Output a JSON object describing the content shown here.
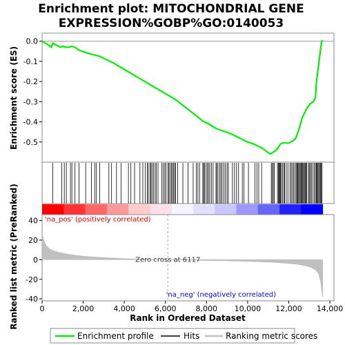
{
  "chart_data": [
    {
      "type": "line",
      "title_line1": "Enrichment plot: MITOCHONDRIAL GENE",
      "title_line2": "EXPRESSION%GOBP%GO:0140053",
      "ylabel": "Enrichment score (ES)",
      "ylim": [
        -0.6,
        0.04
      ],
      "yticks": [
        "0.0",
        "-0.1",
        "-0.2",
        "-0.3",
        "-0.4",
        "-0.5"
      ],
      "ytick_values": [
        0.0,
        -0.1,
        -0.2,
        -0.3,
        -0.4,
        -0.5
      ],
      "xlim": [
        0,
        14200
      ],
      "series": [
        {
          "name": "Enrichment profile",
          "color": "#00ee00",
          "x": [
            0,
            250,
            450,
            520,
            700,
            900,
            1000,
            1150,
            1300,
            1450,
            1600,
            1800,
            2100,
            2400,
            2600,
            2800,
            3000,
            3500,
            4000,
            4500,
            5000,
            5500,
            6000,
            6500,
            7000,
            7500,
            7800,
            8100,
            8500,
            8800,
            9200,
            9600,
            10000,
            10300,
            10500,
            10700,
            10900,
            11100,
            11250,
            11400,
            11500,
            11600,
            11700,
            11800,
            12000,
            12200,
            12350,
            12450,
            12550,
            12650,
            12800,
            12900,
            13050,
            13200,
            13300,
            13350,
            13400,
            13450,
            13500,
            13550,
            13600,
            13650
          ],
          "y": [
            0.0,
            -0.015,
            -0.03,
            -0.01,
            -0.02,
            -0.03,
            -0.025,
            -0.03,
            -0.03,
            -0.025,
            -0.03,
            -0.045,
            -0.055,
            -0.065,
            -0.07,
            -0.075,
            -0.085,
            -0.11,
            -0.14,
            -0.17,
            -0.2,
            -0.23,
            -0.26,
            -0.29,
            -0.33,
            -0.37,
            -0.395,
            -0.41,
            -0.435,
            -0.445,
            -0.46,
            -0.48,
            -0.5,
            -0.51,
            -0.52,
            -0.53,
            -0.545,
            -0.56,
            -0.55,
            -0.54,
            -0.525,
            -0.51,
            -0.505,
            -0.505,
            -0.505,
            -0.495,
            -0.48,
            -0.45,
            -0.42,
            -0.38,
            -0.35,
            -0.33,
            -0.31,
            -0.3,
            -0.28,
            -0.2,
            -0.16,
            -0.12,
            -0.08,
            -0.04,
            0.0,
            0.005
          ]
        }
      ],
      "hits": [
        520,
        960,
        1080,
        1180,
        1380,
        1450,
        1600,
        1800,
        2120,
        2400,
        2560,
        2640,
        2800,
        3250,
        3380,
        3620,
        3840,
        4200,
        4320,
        4500,
        4760,
        4900,
        5020,
        5120,
        5170,
        5250,
        5300,
        5350,
        5420,
        5500,
        5560,
        5640,
        5830,
        5900,
        5970,
        6030,
        6120,
        6170,
        6230,
        6300,
        6340,
        6400,
        6450,
        6500,
        6600,
        6850,
        7100,
        7350,
        7500,
        7580,
        7660,
        7820,
        7860,
        7900,
        7980,
        8040,
        8100,
        8160,
        8240,
        8320,
        8460,
        8500,
        8560,
        8640,
        8700,
        8760,
        8840,
        8920,
        9000,
        9060,
        9260,
        9360,
        9460,
        9560,
        9740,
        9820,
        10040,
        10360,
        10450,
        10540,
        10680,
        11150,
        11200,
        11250,
        11300,
        11450,
        11500,
        11530,
        11560,
        11600,
        11640,
        11700,
        11760,
        11800,
        11880,
        11960,
        12060,
        12120,
        12180,
        12240,
        12300,
        12360,
        12400,
        12440,
        12480,
        12520,
        12560,
        12600,
        12640,
        12680,
        12720,
        12760,
        12800,
        12840,
        12880,
        12960,
        13000,
        13060,
        13100,
        13180,
        13240,
        13300,
        13340,
        13380,
        13420,
        13460,
        13500,
        13540,
        13580,
        13620
      ],
      "color_bar_colors": [
        "#ff0000",
        "#ff3333",
        "#ff6666",
        "#ff9999",
        "#ffcccc",
        "#ffe0ea",
        "#f5f5ff",
        "#e0e0ff",
        "#c8c8ff",
        "#9999ff",
        "#6666ff",
        "#2222ff",
        "#0000ff"
      ]
    },
    {
      "type": "area",
      "ylabel": "Ranked list metric (PreRanked)",
      "xlabel": "Rank in Ordered Dataset",
      "ylim": [
        -42,
        46
      ],
      "yticks": [
        "40",
        "20",
        "0",
        "-20",
        "-40"
      ],
      "ytick_values": [
        40,
        20,
        0,
        -20,
        -40
      ],
      "xlim": [
        0,
        14200
      ],
      "xticks": [
        "0",
        "2,000",
        "4,000",
        "6,000",
        "8,000",
        "10,000",
        "12,000",
        "14,000"
      ],
      "xtick_values": [
        0,
        2000,
        4000,
        6000,
        8000,
        10000,
        12000,
        14000
      ],
      "x": [
        0,
        50,
        150,
        300,
        500,
        800,
        1200,
        1600,
        2000,
        2500,
        3000,
        3500,
        4000,
        4500,
        5000,
        5500,
        6117,
        7000,
        8000,
        9000,
        10000,
        11000,
        11500,
        12000,
        12500,
        12800,
        13100,
        13300,
        13450,
        13550,
        13650
      ],
      "values": [
        27,
        22,
        16,
        12,
        9.5,
        7.5,
        5.8,
        4.5,
        3.6,
        2.8,
        2.1,
        1.6,
        1.1,
        0.7,
        0.4,
        0.2,
        0,
        -0.4,
        -0.8,
        -1.2,
        -1.7,
        -2.4,
        -3.0,
        -3.8,
        -5.0,
        -6.2,
        -8.0,
        -10.5,
        -14,
        -22,
        -38
      ],
      "zero_cross_x": 6117,
      "zero_cross_label": "Zero cross at 6117",
      "pos_label": "'na_pos' (positively correlated)",
      "neg_label": "'na_neg' (negatively correlated)",
      "pos_color": "#dd0000",
      "neg_color": "#0000dd"
    }
  ],
  "legend": {
    "items": [
      {
        "label": "Enrichment profile",
        "color": "#00ee00"
      },
      {
        "label": "Hits",
        "color": "#000000"
      },
      {
        "label": "Ranking metric scores",
        "color": "#c0c0c0"
      }
    ]
  }
}
